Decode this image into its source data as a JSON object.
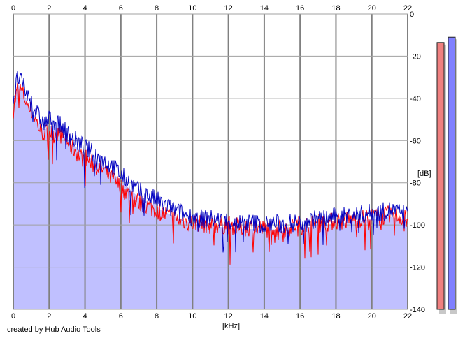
{
  "chart_data": {
    "type": "area",
    "xlabel": "[kHz]",
    "ylabel": "[dB]",
    "xlim": [
      0,
      22
    ],
    "ylim": [
      -140,
      0
    ],
    "xticks": [
      0,
      2,
      4,
      6,
      8,
      10,
      12,
      14,
      16,
      18,
      20,
      22
    ],
    "xtick_labels": [
      "0",
      "2",
      "4",
      "6",
      "8",
      "10",
      "12",
      "14",
      "16",
      "18",
      "20",
      "22"
    ],
    "yticks": [
      0,
      -20,
      -40,
      -60,
      -80,
      -100,
      -120,
      -140
    ],
    "ytick_labels": [
      "0",
      "-20",
      "-40",
      "-60",
      "-80",
      "-100",
      "-120",
      "-140"
    ],
    "grid": true,
    "fill_color": "#c0c0ff",
    "series": [
      {
        "color": "#ff0000",
        "x": [
          0,
          0.25,
          0.5,
          0.75,
          1,
          1.25,
          1.5,
          1.75,
          2,
          2.25,
          2.5,
          2.75,
          3,
          3.25,
          3.5,
          3.75,
          4,
          4.25,
          4.5,
          4.75,
          5,
          5.25,
          5.5,
          5.75,
          6,
          6.25,
          6.5,
          6.75,
          7,
          7.25,
          7.5,
          7.75,
          8,
          8.25,
          8.5,
          8.75,
          9,
          9.5,
          10,
          10.5,
          11,
          11.5,
          12,
          12.5,
          13,
          13.5,
          14,
          14.5,
          15,
          15.5,
          16,
          16.5,
          17,
          17.5,
          18,
          18.5,
          19,
          19.5,
          20,
          20.5,
          21,
          21.5,
          22
        ],
        "y": [
          -45,
          -35,
          -37,
          -42,
          -46,
          -50,
          -55,
          -57,
          -55,
          -57,
          -56,
          -58,
          -60,
          -63,
          -65,
          -68,
          -68,
          -70,
          -72,
          -73,
          -74,
          -76,
          -78,
          -80,
          -82,
          -84,
          -86,
          -88,
          -89,
          -90,
          -91,
          -92,
          -93,
          -94,
          -95,
          -96,
          -97,
          -98,
          -99,
          -99,
          -100,
          -100,
          -100,
          -101,
          -101,
          -101,
          -102,
          -101,
          -102,
          -101,
          -100,
          -100,
          -99,
          -99,
          -98,
          -98,
          -97,
          -97,
          -96,
          -96,
          -95,
          -96,
          -97
        ]
      },
      {
        "color": "#0000c0",
        "x": [
          0,
          0.25,
          0.5,
          0.75,
          1,
          1.25,
          1.5,
          1.75,
          2,
          2.25,
          2.5,
          2.75,
          3,
          3.25,
          3.5,
          3.75,
          4,
          4.25,
          4.5,
          4.75,
          5,
          5.25,
          5.5,
          5.75,
          6,
          6.25,
          6.5,
          6.75,
          7,
          7.25,
          7.5,
          7.75,
          8,
          8.25,
          8.5,
          8.75,
          9,
          9.5,
          10,
          10.5,
          11,
          11.5,
          12,
          12.5,
          13,
          13.5,
          14,
          14.5,
          15,
          15.5,
          16,
          16.5,
          17,
          17.5,
          18,
          18.5,
          19,
          19.5,
          20,
          20.5,
          21,
          21.5,
          22
        ],
        "y": [
          -40,
          -30,
          -33,
          -38,
          -42,
          -46,
          -50,
          -52,
          -50,
          -50,
          -52,
          -54,
          -56,
          -59,
          -60,
          -62,
          -63,
          -65,
          -66,
          -68,
          -69,
          -71,
          -72,
          -74,
          -76,
          -78,
          -80,
          -82,
          -84,
          -85,
          -86,
          -87,
          -88,
          -90,
          -91,
          -92,
          -93,
          -95,
          -96,
          -97,
          -97,
          -98,
          -98,
          -99,
          -99,
          -99,
          -100,
          -99,
          -100,
          -99,
          -99,
          -98,
          -97,
          -97,
          -96,
          -96,
          -95,
          -95,
          -94,
          -94,
          -93,
          -94,
          -95
        ]
      }
    ],
    "levels": [
      {
        "color": "#f08080",
        "value": -13.5
      },
      {
        "color": "#8080ff",
        "value": -11
      }
    ]
  },
  "credit": "created by Hub Audio Tools"
}
